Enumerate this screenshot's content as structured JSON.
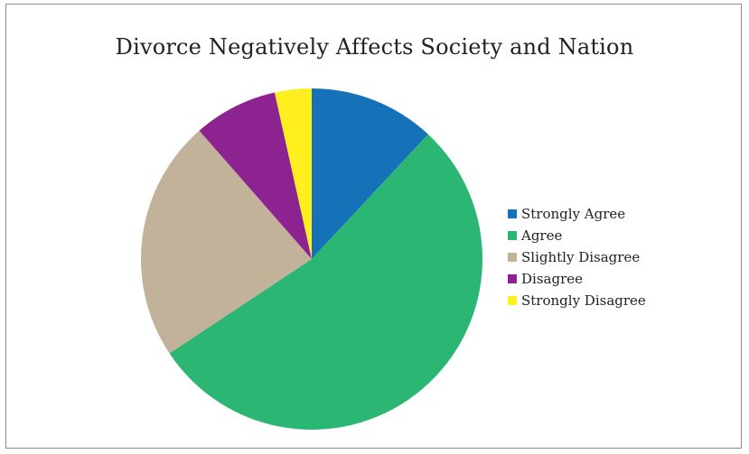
{
  "chart_data": {
    "type": "pie",
    "title": "Divorce Negatively Affects Society and Nation",
    "legend_position": "right",
    "slices": [
      {
        "label": "Strongly Agree",
        "value": 12,
        "color": "#1672b8"
      },
      {
        "label": "Agree",
        "value": 54,
        "color": "#2cb673"
      },
      {
        "label": "Slightly Disagree",
        "value": 23,
        "color": "#c3b29a"
      },
      {
        "label": "Disagree",
        "value": 8,
        "color": "#8c2390"
      },
      {
        "label": "Strongly Disagree",
        "value": 3.5,
        "color": "#ffef1f"
      }
    ]
  }
}
